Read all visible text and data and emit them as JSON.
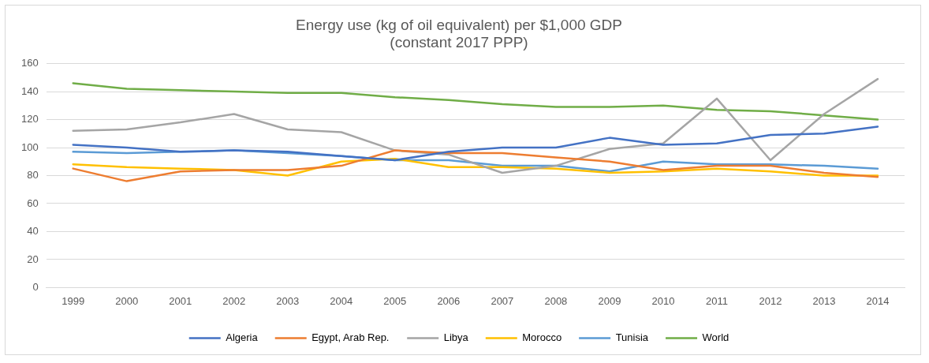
{
  "chart_data": {
    "type": "line",
    "title": "Energy use (kg of oil equivalent) per $1,000 GDP\n(constant 2017 PPP)",
    "categories": [
      "1999",
      "2000",
      "2001",
      "2002",
      "2003",
      "2004",
      "2005",
      "2006",
      "2007",
      "2008",
      "2009",
      "2010",
      "2011",
      "2012",
      "2013",
      "2014"
    ],
    "ylim": [
      0,
      160
    ],
    "yticks": [
      0,
      20,
      40,
      60,
      80,
      100,
      120,
      140,
      160
    ],
    "grid": "y",
    "legend": "bottom",
    "marker": "none",
    "line_style": "solid",
    "series": [
      {
        "name": "Algeria",
        "color": "#4472c4",
        "values": [
          102,
          100,
          97,
          98,
          97,
          94,
          91,
          97,
          100,
          100,
          107,
          102,
          103,
          109,
          110,
          115
        ]
      },
      {
        "name": "Egypt, Arab Rep.",
        "color": "#ed7d31",
        "values": [
          85,
          76,
          83,
          84,
          84,
          87,
          98,
          96,
          96,
          93,
          90,
          84,
          87,
          87,
          82,
          79
        ]
      },
      {
        "name": "Libya",
        "color": "#a5a5a5",
        "values": [
          112,
          113,
          118,
          124,
          113,
          111,
          98,
          95,
          82,
          87,
          99,
          103,
          135,
          91,
          124,
          149
        ]
      },
      {
        "name": "Morocco",
        "color": "#ffc000",
        "values": [
          88,
          86,
          85,
          84,
          80,
          90,
          92,
          86,
          86,
          85,
          82,
          83,
          85,
          83,
          80,
          80
        ]
      },
      {
        "name": "Tunisia",
        "color": "#5b9bd5",
        "values": [
          97,
          96,
          97,
          98,
          96,
          94,
          91,
          91,
          87,
          87,
          83,
          90,
          88,
          88,
          87,
          85
        ]
      },
      {
        "name": "World",
        "color": "#70ad47",
        "values": [
          146,
          142,
          141,
          140,
          139,
          139,
          136,
          134,
          131,
          129,
          129,
          130,
          127,
          126,
          123,
          120
        ]
      }
    ]
  }
}
